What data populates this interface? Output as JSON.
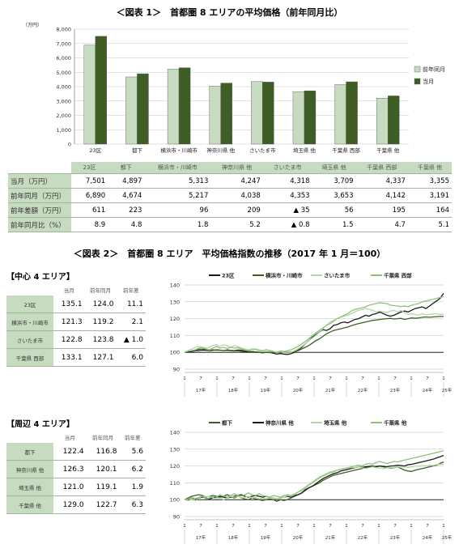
{
  "figure1": {
    "title": "＜図表 1＞　首都圏 8 エリアの平均価格（前年同月比）",
    "unit": "（万円）",
    "legend": [
      "前年同月",
      "当月"
    ],
    "table": {
      "header": [
        "",
        "23区",
        "都下",
        "横浜市・川崎市",
        "神奈川県 他",
        "さいたま市",
        "埼玉県 他",
        "千葉県 西部",
        "千葉県 他"
      ],
      "rows": [
        {
          "label": "当月（万円）",
          "values": [
            "7,501",
            "4,897",
            "5,313",
            "4,247",
            "4,318",
            "3,709",
            "4,337",
            "3,355"
          ]
        },
        {
          "label": "前年同月（万円）",
          "values": [
            "6,890",
            "4,674",
            "5,217",
            "4,038",
            "4,353",
            "3,653",
            "4,142",
            "3,191"
          ]
        },
        {
          "label": "前年差額（万円）",
          "values": [
            "611",
            "223",
            "96",
            "209",
            "▲ 35",
            "56",
            "195",
            "164"
          ]
        },
        {
          "label": "前年同月比（%）",
          "values": [
            "8.9",
            "4.8",
            "1.8",
            "5.2",
            "▲ 0.8",
            "1.5",
            "4.7",
            "5.1"
          ]
        }
      ]
    }
  },
  "figure2": {
    "title": "＜図表 2＞　首都圏 8 エリア　平均価格指数の推移（2017 年 1 月＝100）",
    "center": {
      "title": "【中心 4 エリア】",
      "header": [
        "",
        "当月",
        "前年同月",
        "前年差"
      ],
      "rows": [
        {
          "label": "23区",
          "values": [
            "135.1",
            "124.0",
            "11.1"
          ]
        },
        {
          "label": "横浜市・川崎市",
          "values": [
            "121.3",
            "119.2",
            "2.1"
          ]
        },
        {
          "label": "さいたま市",
          "values": [
            "122.8",
            "123.8",
            "▲ 1.0"
          ]
        },
        {
          "label": "千葉県 西部",
          "values": [
            "133.1",
            "127.1",
            "6.0"
          ]
        }
      ]
    },
    "periphery": {
      "title": "【周辺 4 エリア】",
      "header": [
        "",
        "当月",
        "前年同月",
        "前年差"
      ],
      "rows": [
        {
          "label": "都下",
          "values": [
            "122.4",
            "116.8",
            "5.6"
          ]
        },
        {
          "label": "神奈川県 他",
          "values": [
            "126.3",
            "120.1",
            "6.2"
          ]
        },
        {
          "label": "埼玉県 他",
          "values": [
            "121.0",
            "119.1",
            "1.9"
          ]
        },
        {
          "label": "千葉県 他",
          "values": [
            "129.0",
            "122.7",
            "6.3"
          ]
        }
      ]
    }
  },
  "chart_data": [
    {
      "type": "bar",
      "categories": [
        "23区",
        "都下",
        "横浜市・川崎市",
        "神奈川県 他",
        "さいたま市",
        "埼玉県 他",
        "千葉県 西部",
        "千葉県 他"
      ],
      "series": [
        {
          "name": "前年同月",
          "color": "#c6dbc0",
          "values": [
            6890,
            4674,
            5217,
            4038,
            4353,
            3653,
            4142,
            3191
          ]
        },
        {
          "name": "当月",
          "color": "#3e5e26",
          "values": [
            7501,
            4897,
            5313,
            4247,
            4318,
            3709,
            4337,
            3355
          ]
        }
      ],
      "ylim": [
        0,
        8000
      ],
      "yticks": [
        "0",
        "1,000",
        "2,000",
        "3,000",
        "4,000",
        "5,000",
        "6,000",
        "7,000",
        "8,000"
      ],
      "grid": true,
      "legend_position": "right"
    },
    {
      "type": "line",
      "ylim": [
        90,
        140
      ],
      "yticks": [
        90,
        100,
        110,
        120,
        130,
        140
      ],
      "x_top_ticks": [
        "1",
        "7",
        "1",
        "7",
        "1",
        "7",
        "1",
        "7",
        "1",
        "7",
        "1",
        "7",
        "1",
        "7",
        "1",
        "7",
        "1"
      ],
      "x_year_labels": [
        "17年",
        "18年",
        "19年",
        "20年",
        "21年",
        "22年",
        "23年",
        "24年",
        "25年"
      ],
      "legend_position": "top",
      "series": [
        {
          "name": "23区",
          "color": "#1a1a1a",
          "values": [
            100,
            100.2,
            100.5,
            101,
            101,
            101.3,
            101.2,
            101,
            101.2,
            101.5,
            101.3,
            101,
            101.2,
            101,
            100.8,
            101,
            100.7,
            100.5,
            100.3,
            100.5,
            100.2,
            100,
            99.8,
            100.1,
            100,
            99.5,
            99,
            99.3,
            99,
            98.7,
            99.2,
            100,
            101.5,
            103,
            105,
            107,
            109,
            110.5,
            112,
            113.5,
            113,
            114,
            116,
            116.5,
            117.5,
            118,
            117.5,
            118.5,
            119.5,
            120,
            121,
            122,
            121.5,
            122.5,
            123,
            124,
            123,
            122,
            121.5,
            122,
            123,
            124,
            124.5,
            124,
            125,
            126,
            126.5,
            127,
            126,
            127.5,
            129,
            130.5,
            132,
            135.1
          ]
        },
        {
          "name": "横浜市・川崎市",
          "color": "#3e5e26",
          "values": [
            100,
            100.5,
            101,
            101.5,
            101.8,
            102,
            101.6,
            101.3,
            101.5,
            101.2,
            101.3,
            101,
            101.5,
            101.2,
            101,
            101.5,
            101.3,
            101,
            100.6,
            100.5,
            100.3,
            100,
            99.6,
            100,
            99.8,
            100.2,
            100,
            100.4,
            100,
            99.8,
            100.2,
            100.5,
            101,
            102,
            103,
            104,
            105.5,
            107,
            108,
            109.5,
            111,
            112,
            113,
            113.5,
            114,
            114.5,
            115,
            115.8,
            116.5,
            117,
            117.5,
            118,
            118.5,
            119,
            119.2,
            119.5,
            119.8,
            120,
            120.2,
            119.8,
            120,
            120.2,
            119.5,
            120,
            120.5,
            120.2,
            120.5,
            120.8,
            121,
            120.8,
            121,
            121.2,
            121.3,
            121.3
          ]
        },
        {
          "name": "さいたま市",
          "color": "#b5d6a8",
          "values": [
            100,
            101,
            102,
            103,
            103.5,
            103,
            102.5,
            103,
            104,
            104.5,
            103.5,
            104.5,
            104,
            103,
            104,
            103.5,
            102.5,
            102,
            101.5,
            101.8,
            102,
            101.5,
            101,
            101.5,
            101,
            100.5,
            100,
            100.5,
            100,
            99.5,
            100,
            101,
            102,
            103.5,
            105,
            107,
            108.5,
            110,
            112,
            114,
            116,
            118,
            119,
            120,
            121,
            121.5,
            122,
            123,
            124,
            125,
            125.5,
            126,
            125.5,
            125,
            124,
            124.5,
            124,
            123.5,
            124.5,
            125,
            124,
            125,
            123.5,
            122.5,
            123,
            122.5,
            122,
            123,
            122.2,
            122.5,
            122.8,
            123,
            122.5,
            122.8
          ]
        },
        {
          "name": "千葉県 西部",
          "color": "#8ec277",
          "values": [
            100,
            100.8,
            101,
            101.5,
            102.5,
            103,
            102,
            101.5,
            102.5,
            103.5,
            102.5,
            103,
            102.2,
            103,
            102.5,
            102.8,
            102,
            101.5,
            101,
            102,
            101.8,
            101,
            100.8,
            101.5,
            101.2,
            100.5,
            100,
            100.8,
            100.5,
            101,
            101.5,
            102.5,
            103.5,
            105,
            106.5,
            108,
            110,
            111.5,
            113,
            114.5,
            116,
            117,
            118.5,
            120,
            121,
            122,
            123,
            124.5,
            125.5,
            126,
            126.5,
            127,
            128,
            128.5,
            129,
            129.5,
            129.2,
            129,
            128,
            127.8,
            127.5,
            127.2,
            127.5,
            127.1,
            128,
            128.5,
            129,
            130,
            130.5,
            131,
            131.5,
            132,
            132.6,
            133.1
          ]
        }
      ]
    },
    {
      "type": "line",
      "ylim": [
        90,
        140
      ],
      "yticks": [
        90,
        100,
        110,
        120,
        130,
        140
      ],
      "x_top_ticks": [
        "1",
        "7",
        "1",
        "7",
        "1",
        "7",
        "1",
        "7",
        "1",
        "7",
        "1",
        "7",
        "1",
        "7",
        "1",
        "7",
        "1"
      ],
      "x_year_labels": [
        "17年",
        "18年",
        "19年",
        "20年",
        "21年",
        "22年",
        "23年",
        "24年",
        "25年"
      ],
      "legend_position": "top",
      "series": [
        {
          "name": "都下",
          "color": "#3e5e26",
          "values": [
            100,
            101,
            102,
            102.5,
            103,
            102.5,
            101.5,
            102,
            102.5,
            102,
            101.5,
            102,
            103,
            102,
            101,
            102,
            101,
            100.5,
            100,
            101,
            100.5,
            100,
            99.5,
            100,
            100.5,
            100,
            99,
            100,
            99.5,
            100,
            101,
            102,
            103,
            104,
            106,
            107,
            108,
            109,
            110,
            111.5,
            112.5,
            113.5,
            114.5,
            115,
            115.5,
            116,
            116.5,
            117,
            117.5,
            118,
            118.5,
            119,
            119.5,
            119.5,
            119.8,
            120,
            119.5,
            119.2,
            118.8,
            119,
            119.5,
            118.5,
            117.5,
            117,
            116.8,
            117.5,
            118,
            118.5,
            119,
            119.5,
            120,
            120.5,
            121.5,
            122.4
          ]
        },
        {
          "name": "神奈川県 他",
          "color": "#1a1a1a",
          "values": [
            100,
            100.5,
            101,
            100.5,
            101,
            101.5,
            101,
            100.5,
            101,
            101.5,
            102,
            101.5,
            101,
            101.5,
            102,
            102.5,
            103,
            102,
            101.5,
            102,
            102.5,
            102,
            101.5,
            102,
            101.5,
            101,
            100.5,
            101,
            101.5,
            102,
            101.5,
            102.5,
            103,
            104,
            105.5,
            107,
            108,
            109.5,
            111,
            112.5,
            113.5,
            114.5,
            115.5,
            116,
            117,
            117.5,
            118,
            118.5,
            119,
            119.5,
            119.2,
            119.5,
            119.8,
            120,
            119.5,
            120,
            119.8,
            119.5,
            120,
            120.1,
            120.5,
            120.3,
            120,
            120.8,
            121,
            121.5,
            122,
            122.5,
            123,
            123.5,
            124,
            124.8,
            125.5,
            126.3
          ]
        },
        {
          "name": "埼玉県 他",
          "color": "#b5d6a8",
          "values": [
            100,
            99.5,
            100,
            100.8,
            101.5,
            102,
            101.5,
            102,
            101,
            100.5,
            101,
            100,
            101,
            102,
            101.5,
            102,
            101,
            101.5,
            102,
            101,
            101.5,
            100.5,
            101,
            100.5,
            101.5,
            101,
            100.5,
            101,
            101.5,
            102.5,
            102,
            103,
            104.5,
            106,
            107.5,
            109,
            110.5,
            112,
            113.5,
            114.5,
            115.5,
            116.5,
            117,
            117.5,
            118,
            118.5,
            118.8,
            119,
            119.1,
            119.5,
            119,
            118.5,
            119,
            119.5,
            119,
            118.8,
            118.5,
            119,
            119.1,
            119.2,
            119.5,
            119.3,
            119.5,
            119.2,
            119.5,
            120,
            119.8,
            120.2,
            120,
            120.5,
            120.3,
            120.8,
            121,
            121
          ]
        },
        {
          "name": "千葉県 他",
          "color": "#8ec277",
          "values": [
            100,
            100.5,
            101,
            99.5,
            101,
            102,
            100.5,
            101,
            102,
            101.5,
            103,
            102,
            101.5,
            102.5,
            103.5,
            102.5,
            102,
            103,
            104,
            103,
            102.5,
            103.5,
            102.5,
            102,
            101.5,
            102.5,
            102,
            101.5,
            102.5,
            103,
            102.5,
            103.5,
            104.5,
            105.5,
            107,
            108.5,
            110,
            111.5,
            113,
            114,
            115,
            116,
            116.5,
            117.5,
            118,
            118.5,
            119,
            119.5,
            120,
            120.5,
            120,
            121,
            121.5,
            121,
            122,
            122.7,
            122,
            121.5,
            122,
            122.7,
            122.5,
            123,
            123.5,
            124,
            124.5,
            125,
            125.5,
            126,
            126.5,
            127,
            127.5,
            128,
            128.5,
            129
          ]
        }
      ]
    }
  ]
}
